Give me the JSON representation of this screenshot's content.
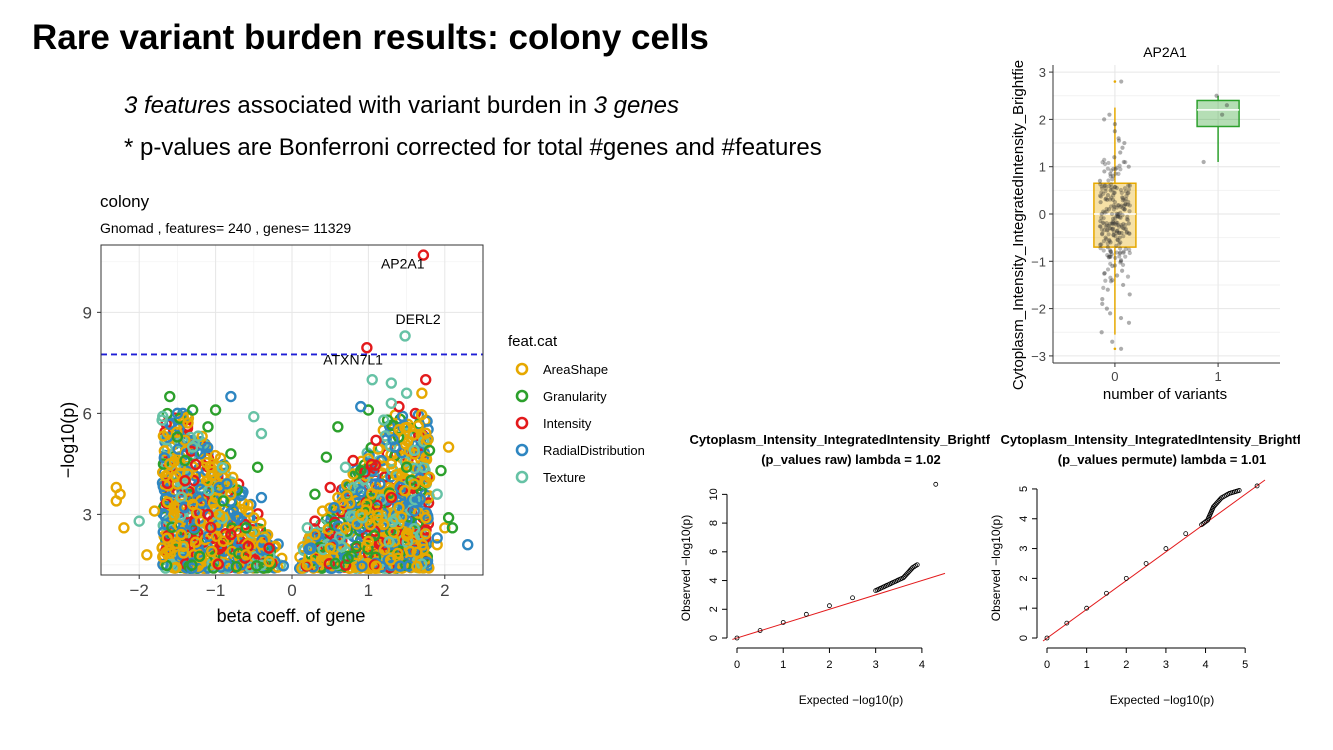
{
  "slide": {
    "title": "Rare variant burden results: colony cells",
    "bullet1": {
      "count1": "3 features",
      "mid": " associated with variant burden in ",
      "count2": "3 genes"
    },
    "bullet2": "* p-values are Bonferroni corrected for total #genes and #features"
  },
  "chart_data": [
    {
      "type": "scatter",
      "title": "colony",
      "subtitle": "Gnomad , features= 240 , genes= 11329",
      "xlabel": "beta coeff. of gene",
      "ylabel": "−log10(p)",
      "xlim": [
        -2.5,
        2.5
      ],
      "ylim": [
        1.2,
        11.0
      ],
      "x_ticks": [
        -2,
        -1,
        0,
        1,
        2
      ],
      "x_tick_labels": [
        "−2",
        "−1",
        "0",
        "1",
        "2"
      ],
      "y_ticks": [
        3,
        6,
        9
      ],
      "y_tick_labels": [
        "3",
        "6",
        "9"
      ],
      "grid": true,
      "threshold_line": 7.75,
      "threshold_color": "#1f1fd6",
      "legend": {
        "title": "feat.cat",
        "placement": "right",
        "items": [
          {
            "name": "AreaShape",
            "color": "#E6A800"
          },
          {
            "name": "Granularity",
            "color": "#2CA02C"
          },
          {
            "name": "Intensity",
            "color": "#E31A1C"
          },
          {
            "name": "RadialDistribution",
            "color": "#2E86C1"
          },
          {
            "name": "Texture",
            "color": "#66C2A5"
          }
        ]
      },
      "series": [
        {
          "name": "AreaShape",
          "points": [
            [
              -2.3,
              3.8
            ],
            [
              -2.25,
              3.6
            ],
            [
              -2.3,
              3.4
            ],
            [
              -2.2,
              2.6
            ],
            [
              -1.9,
              1.8
            ],
            [
              -1.8,
              3.1
            ],
            [
              -1.7,
              2.0
            ],
            [
              -1.6,
              4.5
            ],
            [
              -1.5,
              3.9
            ],
            [
              -1.45,
              2.4
            ],
            [
              -1.4,
              5.2
            ],
            [
              -1.3,
              3.3
            ],
            [
              -1.2,
              2.8
            ],
            [
              -1.1,
              4.0
            ],
            [
              -1.05,
              1.9
            ],
            [
              -0.95,
              3.0
            ],
            [
              -0.9,
              2.2
            ],
            [
              -0.8,
              3.6
            ],
            [
              -0.7,
              2.5
            ],
            [
              -0.6,
              1.8
            ],
            [
              -0.5,
              2.9
            ],
            [
              -0.4,
              2.1
            ],
            [
              -0.3,
              1.6
            ],
            [
              0.2,
              1.5
            ],
            [
              0.3,
              2.4
            ],
            [
              0.4,
              3.1
            ],
            [
              0.5,
              2.0
            ],
            [
              0.6,
              3.5
            ],
            [
              0.7,
              2.6
            ],
            [
              0.8,
              4.2
            ],
            [
              0.9,
              3.0
            ],
            [
              1.0,
              2.2
            ],
            [
              1.1,
              3.8
            ],
            [
              1.2,
              2.7
            ],
            [
              1.3,
              4.5
            ],
            [
              1.4,
              3.2
            ],
            [
              1.5,
              2.4
            ],
            [
              1.6,
              3.9
            ],
            [
              1.7,
              6.6
            ],
            [
              1.75,
              2.9
            ],
            [
              1.8,
              4.1
            ],
            [
              1.9,
              2.1
            ],
            [
              2.05,
              5.0
            ],
            [
              2.0,
              2.6
            ]
          ]
        },
        {
          "name": "Granularity",
          "points": [
            [
              -1.6,
              6.5
            ],
            [
              -1.5,
              5.3
            ],
            [
              -1.4,
              4.6
            ],
            [
              -1.3,
              6.1
            ],
            [
              -1.1,
              5.6
            ],
            [
              -1.0,
              6.1
            ],
            [
              -0.9,
              3.4
            ],
            [
              -0.8,
              4.8
            ],
            [
              -0.6,
              2.6
            ],
            [
              -0.45,
              4.4
            ],
            [
              0.3,
              3.6
            ],
            [
              0.45,
              4.7
            ],
            [
              0.6,
              5.6
            ],
            [
              0.9,
              4.3
            ],
            [
              1.0,
              6.1
            ],
            [
              1.25,
              5.8
            ],
            [
              1.5,
              4.4
            ],
            [
              1.8,
              4.9
            ],
            [
              1.95,
              4.3
            ],
            [
              2.1,
              2.6
            ],
            [
              2.05,
              2.9
            ]
          ]
        },
        {
          "name": "Intensity",
          "points": [
            [
              1.72,
              10.7
            ],
            [
              0.98,
              7.95
            ],
            [
              1.75,
              7.0
            ],
            [
              1.4,
              6.2
            ],
            [
              -1.1,
              3.0
            ],
            [
              -0.8,
              2.4
            ],
            [
              -0.3,
              2.0
            ],
            [
              0.5,
              3.8
            ],
            [
              0.8,
              4.6
            ],
            [
              1.1,
              5.2
            ],
            [
              1.3,
              3.5
            ],
            [
              0.3,
              2.8
            ],
            [
              -1.4,
              4.0
            ]
          ]
        },
        {
          "name": "RadialDistribution",
          "points": [
            [
              -0.8,
              6.5
            ],
            [
              -1.5,
              6.0
            ],
            [
              -1.2,
              4.8
            ],
            [
              -0.95,
              3.8
            ],
            [
              -0.7,
              2.9
            ],
            [
              -0.4,
              3.5
            ],
            [
              0.25,
              2.0
            ],
            [
              0.55,
              3.2
            ],
            [
              0.9,
              6.2
            ],
            [
              1.15,
              3.9
            ],
            [
              1.35,
              5.0
            ],
            [
              1.6,
              3.1
            ],
            [
              1.9,
              2.3
            ],
            [
              2.3,
              2.1
            ]
          ]
        },
        {
          "name": "Texture",
          "points": [
            [
              1.48,
              8.3
            ],
            [
              1.05,
              7.0
            ],
            [
              1.3,
              6.9
            ],
            [
              1.5,
              6.6
            ],
            [
              1.3,
              6.3
            ],
            [
              -0.5,
              5.9
            ],
            [
              -1.7,
              5.8
            ],
            [
              -2.0,
              2.8
            ],
            [
              -1.3,
              5.0
            ],
            [
              -0.4,
              5.4
            ],
            [
              0.2,
              2.6
            ],
            [
              0.7,
              4.4
            ],
            [
              1.2,
              5.8
            ],
            [
              1.6,
              4.9
            ],
            [
              1.9,
              3.6
            ]
          ]
        }
      ],
      "annotations": [
        {
          "text": "AP2A1",
          "x": 1.45,
          "y": 10.3
        },
        {
          "text": "DERL2",
          "x": 1.65,
          "y": 8.65
        },
        {
          "text": "ATXN7L1",
          "x": 0.8,
          "y": 7.45
        }
      ]
    },
    {
      "type": "box",
      "title": "AP2A1",
      "xlabel": "number of variants",
      "ylabel": "Cytoplasm_Intensity_IntegratedIntensity_Brightfie",
      "xlim": [
        -0.6,
        1.6
      ],
      "ylim": [
        -3.15,
        3.15
      ],
      "x_ticks": [
        0,
        1
      ],
      "x_tick_labels": [
        "0",
        "1"
      ],
      "y_ticks": [
        -3,
        -2,
        -1,
        0,
        1,
        2,
        3
      ],
      "y_tick_labels": [
        "−3",
        "−2",
        "−1",
        "0",
        "1",
        "2",
        "3"
      ],
      "grid": true,
      "boxes": [
        {
          "category": 0,
          "color": "#E6A800",
          "q1": -0.7,
          "median": 0.0,
          "q3": 0.65,
          "whisker_low": -2.55,
          "whisker_high": 2.25,
          "outliers": [
            2.8,
            -2.85
          ]
        },
        {
          "category": 1,
          "color": "#2CA02C",
          "q1": 1.85,
          "median": 2.2,
          "q3": 2.4,
          "whisker_low": 1.1,
          "whisker_high": 2.5,
          "outliers": []
        }
      ],
      "jitter_points": {
        "0": [
          2.8,
          -2.85,
          2.0,
          1.9,
          1.75,
          1.6,
          1.5,
          1.4,
          1.3,
          1.2,
          1.1,
          1.0,
          0.9,
          0.85,
          0.8,
          0.7,
          0.6,
          0.55,
          0.5,
          0.45,
          0.4,
          0.35,
          0.3,
          0.25,
          0.2,
          0.15,
          0.1,
          0.05,
          0.0,
          -0.05,
          -0.1,
          -0.15,
          -0.2,
          -0.25,
          -0.3,
          -0.35,
          -0.4,
          -0.45,
          -0.5,
          -0.55,
          -0.6,
          -0.65,
          -0.7,
          -0.8,
          -0.9,
          -1.0,
          -1.1,
          -1.2,
          -1.3,
          -1.4,
          -1.5,
          -1.6,
          -1.7,
          -1.8,
          -1.9,
          -2.0,
          -2.1,
          -2.3,
          -2.5,
          -2.7,
          0.3,
          -0.2,
          -0.5,
          0.1,
          -0.4,
          0.6,
          -0.6,
          0.2,
          -0.3,
          0.0,
          1.55,
          -1.25,
          0.95,
          -0.85,
          2.1,
          -2.2
        ],
        "1": [
          2.5,
          2.3,
          2.1,
          1.1
        ]
      }
    },
    {
      "type": "scatter",
      "title": "Cytoplasm_Intensity_IntegratedIntensity_Brightfield",
      "subtitle": "(p_values raw) lambda = 1.02",
      "xlabel": "Expected −log10(p)",
      "ylabel": "Observed −log10(p)",
      "xlim": [
        0,
        4.5
      ],
      "ylim": [
        0,
        11
      ],
      "x_ticks": [
        0,
        1,
        2,
        3,
        4
      ],
      "y_ticks": [
        0,
        2,
        4,
        6,
        8,
        10
      ],
      "reference_line": "y = x",
      "points_summary": [
        [
          0,
          0
        ],
        [
          0.5,
          0.52
        ],
        [
          1,
          1.08
        ],
        [
          1.5,
          1.65
        ],
        [
          2,
          2.25
        ],
        [
          2.5,
          2.8
        ],
        [
          3,
          3.3
        ],
        [
          3.2,
          3.6
        ],
        [
          3.4,
          3.9
        ],
        [
          3.6,
          4.2
        ],
        [
          3.8,
          4.9
        ],
        [
          3.9,
          5.1
        ],
        [
          4.3,
          10.7
        ]
      ]
    },
    {
      "type": "scatter",
      "title": "Cytoplasm_Intensity_IntegratedIntensity_Brightfield",
      "subtitle": "(p_values permute) lambda = 1.01",
      "xlabel": "Expected −log10(p)",
      "ylabel": "Observed −log10(p)",
      "xlim": [
        0,
        5.5
      ],
      "ylim": [
        0,
        5.3
      ],
      "x_ticks": [
        0,
        1,
        2,
        3,
        4,
        5
      ],
      "y_ticks": [
        0,
        1,
        2,
        3,
        4,
        5
      ],
      "reference_line": "y = x",
      "points_summary": [
        [
          0,
          0
        ],
        [
          0.5,
          0.5
        ],
        [
          1,
          1.0
        ],
        [
          1.5,
          1.5
        ],
        [
          2,
          2.0
        ],
        [
          2.5,
          2.5
        ],
        [
          3,
          3.0
        ],
        [
          3.5,
          3.5
        ],
        [
          3.9,
          3.8
        ],
        [
          4.05,
          3.95
        ],
        [
          4.2,
          4.4
        ],
        [
          4.4,
          4.7
        ],
        [
          4.6,
          4.85
        ],
        [
          4.85,
          4.95
        ],
        [
          5.3,
          5.1
        ]
      ]
    }
  ]
}
